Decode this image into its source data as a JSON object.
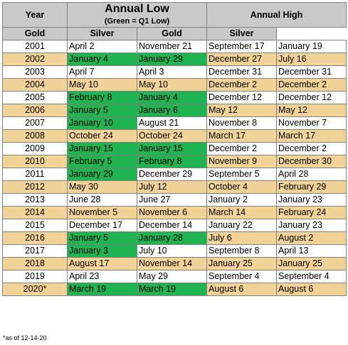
{
  "headers": {
    "year": "Year",
    "annual_low": "Annual Low",
    "annual_low_note": "(Green = Q1 Low)",
    "annual_high": "Annual High",
    "gold": "Gold",
    "silver": "Silver"
  },
  "colors": {
    "header_bg": "#c9c9c9",
    "alt_row": "#f1d397",
    "q1_green": "#1fb351"
  },
  "rows": [
    {
      "year": "2001",
      "low_gold": "April 2",
      "low_silver": "November 21",
      "high_gold": "September 17",
      "high_silver": "January 19",
      "q1_gold": false,
      "q1_silver": false
    },
    {
      "year": "2002",
      "low_gold": "January 4",
      "low_silver": "January 29",
      "high_gold": "December 27",
      "high_silver": "July 16",
      "q1_gold": true,
      "q1_silver": true
    },
    {
      "year": "2003",
      "low_gold": "April 7",
      "low_silver": "April 3",
      "high_gold": "December 31",
      "high_silver": "December 31",
      "q1_gold": false,
      "q1_silver": false
    },
    {
      "year": "2004",
      "low_gold": "May 10",
      "low_silver": "May 10",
      "high_gold": "December 2",
      "high_silver": "December 2",
      "q1_gold": false,
      "q1_silver": false
    },
    {
      "year": "2005",
      "low_gold": "February 8",
      "low_silver": "January 4",
      "high_gold": "December 12",
      "high_silver": "December 12",
      "q1_gold": true,
      "q1_silver": true
    },
    {
      "year": "2006",
      "low_gold": "January 5",
      "low_silver": "January 6",
      "high_gold": "May 12",
      "high_silver": "May 12",
      "q1_gold": true,
      "q1_silver": true
    },
    {
      "year": "2007",
      "low_gold": "January 10",
      "low_silver": "August 21",
      "high_gold": "November 8",
      "high_silver": "November 7",
      "q1_gold": true,
      "q1_silver": false
    },
    {
      "year": "2008",
      "low_gold": "October 24",
      "low_silver": "October 24",
      "high_gold": "March 17",
      "high_silver": "March 17",
      "q1_gold": false,
      "q1_silver": false
    },
    {
      "year": "2009",
      "low_gold": "January 15",
      "low_silver": "January 15",
      "high_gold": "December 2",
      "high_silver": "December 2",
      "q1_gold": true,
      "q1_silver": true
    },
    {
      "year": "2010",
      "low_gold": "February 5",
      "low_silver": "February 8",
      "high_gold": "November 9",
      "high_silver": "December 30",
      "q1_gold": true,
      "q1_silver": true
    },
    {
      "year": "2011",
      "low_gold": "January 29",
      "low_silver": "December 29",
      "high_gold": "September 5",
      "high_silver": "April 28",
      "q1_gold": true,
      "q1_silver": false
    },
    {
      "year": "2012",
      "low_gold": "May 30",
      "low_silver": "July 12",
      "high_gold": "October 4",
      "high_silver": "February 29",
      "q1_gold": false,
      "q1_silver": false
    },
    {
      "year": "2013",
      "low_gold": "June 28",
      "low_silver": "June 27",
      "high_gold": "January 2",
      "high_silver": "January 23",
      "q1_gold": false,
      "q1_silver": false
    },
    {
      "year": "2014",
      "low_gold": "November 5",
      "low_silver": "November 6",
      "high_gold": "March 14",
      "high_silver": "February 24",
      "q1_gold": false,
      "q1_silver": false
    },
    {
      "year": "2015",
      "low_gold": "December 17",
      "low_silver": "December 14",
      "high_gold": "January 22",
      "high_silver": "January 23",
      "q1_gold": false,
      "q1_silver": false
    },
    {
      "year": "2016",
      "low_gold": "January 5",
      "low_silver": "January 28",
      "high_gold": "July 6",
      "high_silver": "August 2",
      "q1_gold": true,
      "q1_silver": true
    },
    {
      "year": "2017",
      "low_gold": "January 3",
      "low_silver": "July 10",
      "high_gold": "September 8",
      "high_silver": "April 13",
      "q1_gold": true,
      "q1_silver": false
    },
    {
      "year": "2018",
      "low_gold": "August 17",
      "low_silver": "November 14",
      "high_gold": "January 25",
      "high_silver": "January 25",
      "q1_gold": false,
      "q1_silver": false
    },
    {
      "year": "2019",
      "low_gold": "April 23",
      "low_silver": "May 29",
      "high_gold": "September 4",
      "high_silver": "September 4",
      "q1_gold": false,
      "q1_silver": false
    },
    {
      "year": "2020*",
      "low_gold": "March 19",
      "low_silver": "March 19",
      "high_gold": "August 6",
      "high_silver": "August 6",
      "q1_gold": true,
      "q1_silver": true
    }
  ],
  "footnote": "*as of 12-14-20"
}
